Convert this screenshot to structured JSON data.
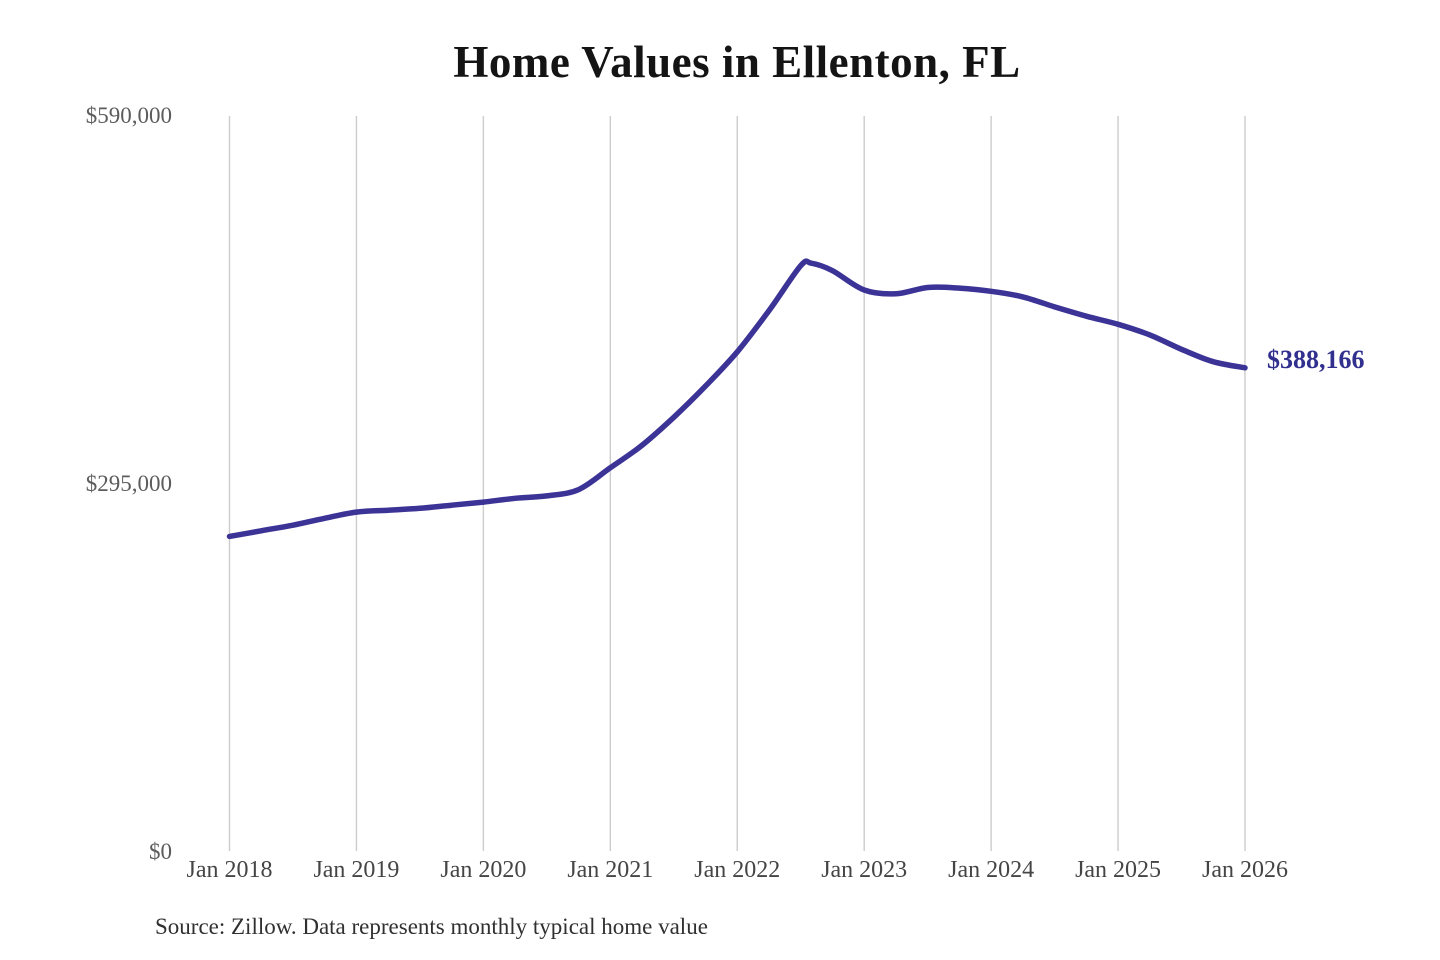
{
  "chart_data": {
    "type": "line",
    "title": "Home Values in Ellenton, FL",
    "source": "Source: Zillow. Data represents monthly typical home value",
    "end_label": "$388,166",
    "grid": "vertical-only",
    "legend": "none",
    "ylim": [
      0,
      590000
    ],
    "x_range_months": [
      "2018-01",
      "2026-01"
    ],
    "y_ticks": [
      {
        "label": "$590,000",
        "value": 590000
      },
      {
        "label": "$295,000",
        "value": 295000
      },
      {
        "label": "$0",
        "value": 0
      }
    ],
    "x_ticks": [
      {
        "label": "Jan 2018",
        "month": "2018-01"
      },
      {
        "label": "Jan 2019",
        "month": "2019-01"
      },
      {
        "label": "Jan 2020",
        "month": "2020-01"
      },
      {
        "label": "Jan 2021",
        "month": "2021-01"
      },
      {
        "label": "Jan 2022",
        "month": "2022-01"
      },
      {
        "label": "Jan 2023",
        "month": "2023-01"
      },
      {
        "label": "Jan 2024",
        "month": "2024-01"
      },
      {
        "label": "Jan 2025",
        "month": "2025-01"
      },
      {
        "label": "Jan 2026",
        "month": "2026-01"
      }
    ],
    "series": [
      {
        "name": "Monthly typical home value",
        "color": "#3c3397",
        "points": [
          [
            "2018-01",
            253000
          ],
          [
            "2018-04",
            257500
          ],
          [
            "2018-07",
            262000
          ],
          [
            "2018-10",
            267500
          ],
          [
            "2019-01",
            272500
          ],
          [
            "2019-04",
            274000
          ],
          [
            "2019-07",
            275500
          ],
          [
            "2019-10",
            278000
          ],
          [
            "2020-01",
            280500
          ],
          [
            "2020-04",
            283500
          ],
          [
            "2020-07",
            285500
          ],
          [
            "2020-10",
            290500
          ],
          [
            "2021-01",
            308000
          ],
          [
            "2021-04",
            326000
          ],
          [
            "2021-07",
            348500
          ],
          [
            "2021-10",
            373500
          ],
          [
            "2022-01",
            401000
          ],
          [
            "2022-04",
            434000
          ],
          [
            "2022-07",
            470000
          ],
          [
            "2022-08",
            472000
          ],
          [
            "2022-10",
            466000
          ],
          [
            "2023-01",
            450500
          ],
          [
            "2023-04",
            447500
          ],
          [
            "2023-07",
            452500
          ],
          [
            "2023-10",
            452000
          ],
          [
            "2024-01",
            449500
          ],
          [
            "2024-04",
            445000
          ],
          [
            "2024-07",
            437000
          ],
          [
            "2024-10",
            429500
          ],
          [
            "2025-01",
            423000
          ],
          [
            "2025-04",
            414500
          ],
          [
            "2025-07",
            403000
          ],
          [
            "2025-10",
            393000
          ],
          [
            "2026-01",
            388166
          ]
        ]
      }
    ],
    "colors": {
      "line": "#3c3397",
      "end_label": "#32308f",
      "gridline": "#cccccc",
      "title": "#141414",
      "y_tick": "#5c5c5c",
      "x_tick": "#454545",
      "source": "#303030",
      "background": "#ffffff"
    }
  }
}
